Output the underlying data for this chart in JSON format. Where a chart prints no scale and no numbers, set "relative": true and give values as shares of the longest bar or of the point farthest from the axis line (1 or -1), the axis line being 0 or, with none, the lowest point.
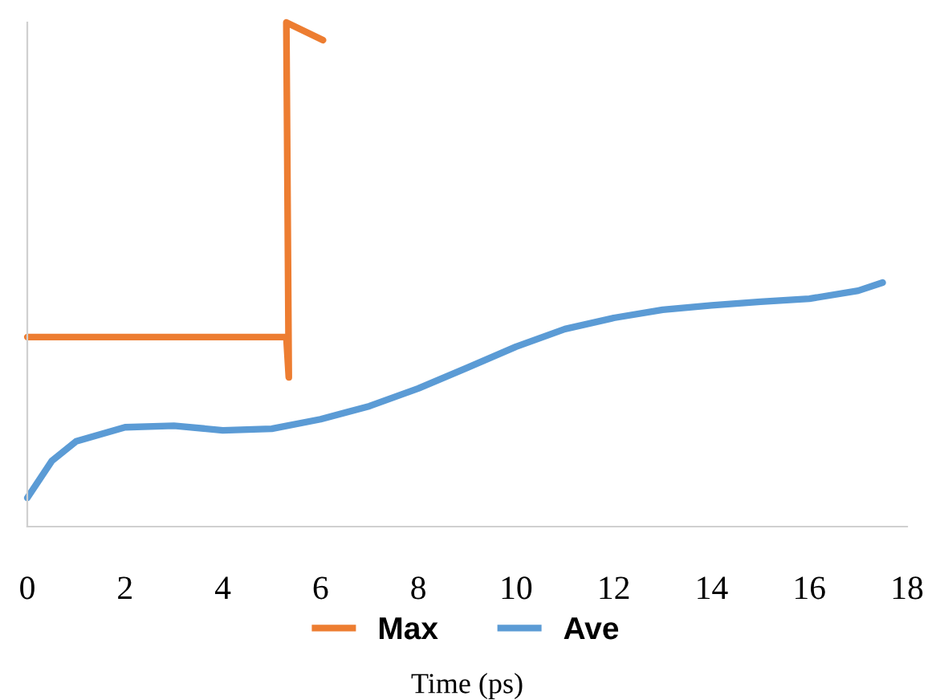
{
  "chart_data": {
    "type": "line",
    "relative": true,
    "xlabel": "Time (ps)",
    "xlim": [
      0,
      18
    ],
    "xticks": [
      0,
      2,
      4,
      6,
      8,
      10,
      12,
      14,
      16,
      18
    ],
    "legend": "bottom",
    "tick_labels": "x",
    "grid": false,
    "series": [
      {
        "name": "Max",
        "color": "#ed7d31",
        "x": [
          0,
          1,
          2,
          3,
          4,
          5,
          5.3,
          5.35,
          5.3,
          6.05
        ],
        "values": [
          0.376,
          0.376,
          0.376,
          0.376,
          0.376,
          0.376,
          0.376,
          0.296,
          1.0,
          0.965
        ]
      },
      {
        "name": "Ave",
        "color": "#5b9bd5",
        "x": [
          0,
          0.5,
          1,
          2,
          3,
          4,
          5,
          6,
          7,
          8,
          9,
          10,
          11,
          12,
          13,
          14,
          15,
          16,
          17,
          17.5
        ],
        "values": [
          0.057,
          0.13,
          0.169,
          0.197,
          0.2,
          0.191,
          0.194,
          0.213,
          0.239,
          0.274,
          0.315,
          0.357,
          0.392,
          0.414,
          0.43,
          0.439,
          0.446,
          0.452,
          0.468,
          0.484
        ]
      }
    ]
  }
}
